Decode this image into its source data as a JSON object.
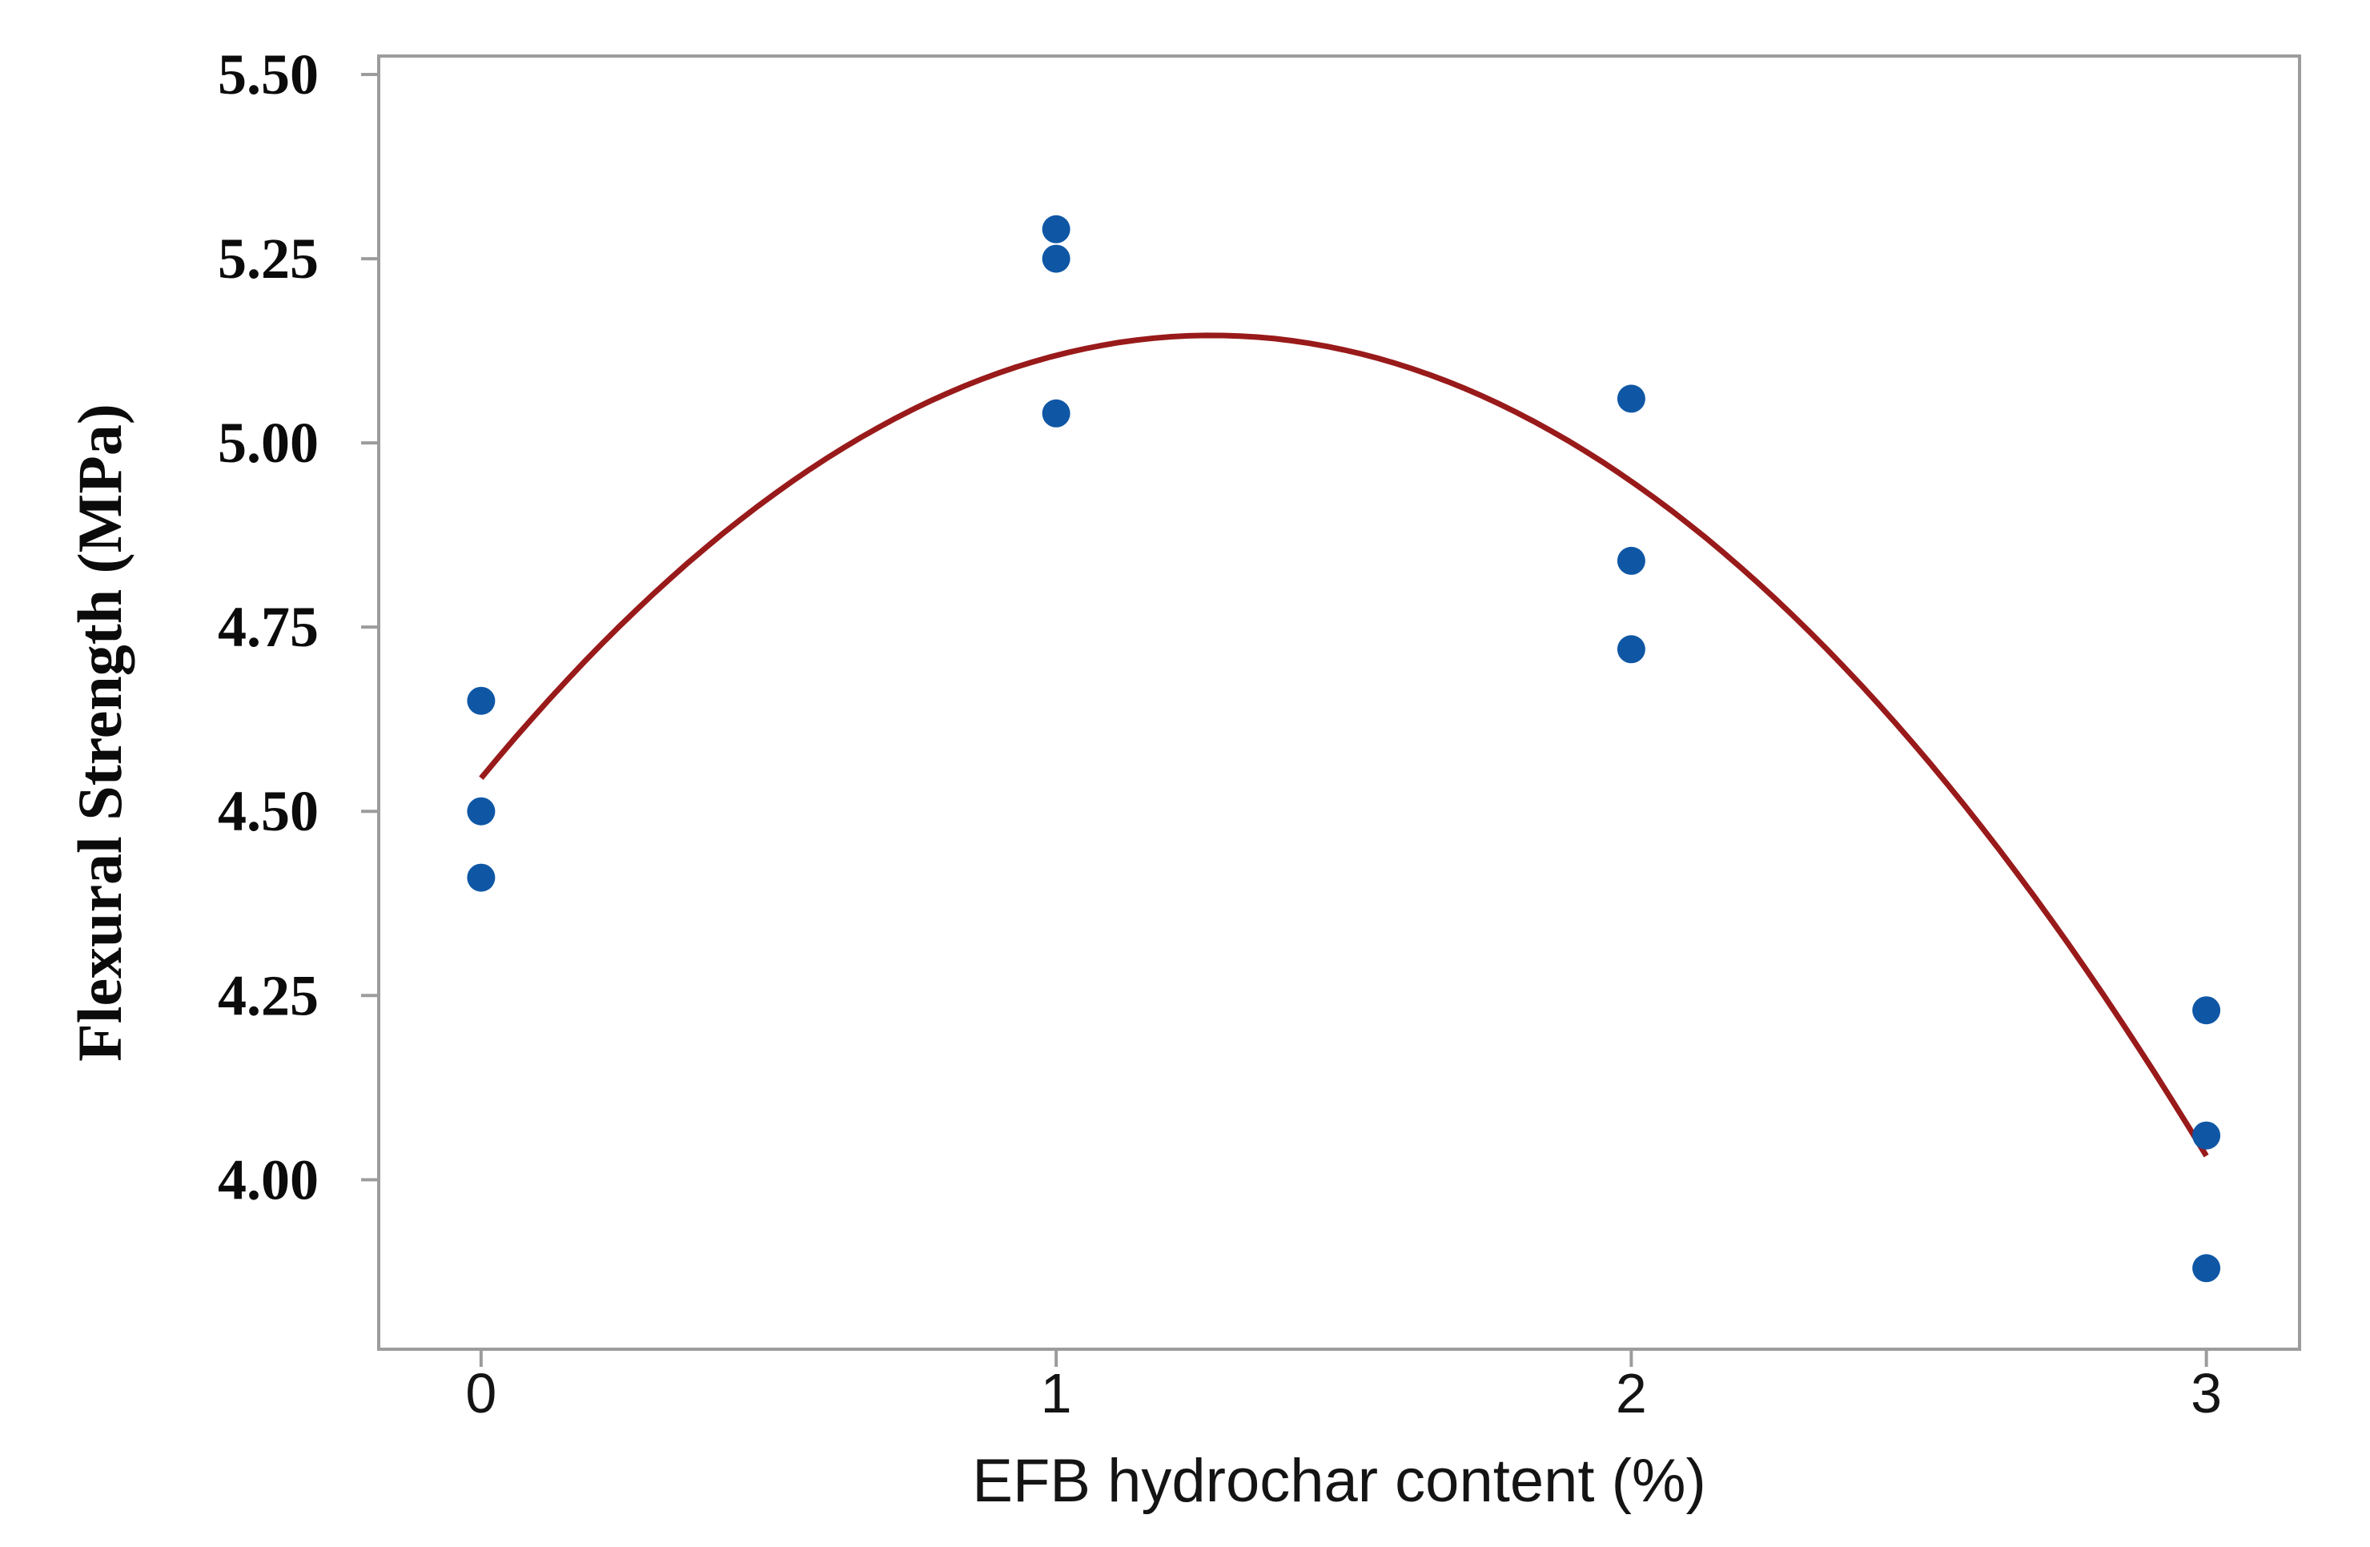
{
  "chart_data": {
    "type": "scatter",
    "title": "",
    "xlabel": "EFB hydrochar content (%)",
    "ylabel": "Flexural Strength (MPa)",
    "x_tick_labels": [
      "0",
      "1",
      "2",
      "3"
    ],
    "x_tick_values": [
      0,
      1,
      2,
      3
    ],
    "y_tick_labels": [
      "5.50",
      "5.25",
      "5.00",
      "4.75",
      "4.50",
      "4.25",
      "4.00"
    ],
    "y_tick_values": [
      5.5,
      5.25,
      5.0,
      4.75,
      4.5,
      4.25,
      4.0
    ],
    "xlim": [
      -0.178,
      3.162
    ],
    "ylim": [
      3.77,
      5.525
    ],
    "grid": false,
    "legend": false,
    "axis_color": "#9C9C9C",
    "tick_color": "#9C9C9C",
    "text_color": "#0b0b0b",
    "series": [
      {
        "name": "flexural-strength-observations",
        "type": "scatter",
        "marker": "circle",
        "color": "#0F57A5",
        "points": [
          {
            "x": 0,
            "y": 4.65
          },
          {
            "x": 0,
            "y": 4.5
          },
          {
            "x": 0,
            "y": 4.41
          },
          {
            "x": 1,
            "y": 5.29
          },
          {
            "x": 1,
            "y": 5.25
          },
          {
            "x": 1,
            "y": 5.04
          },
          {
            "x": 2,
            "y": 5.06
          },
          {
            "x": 2,
            "y": 4.84
          },
          {
            "x": 2,
            "y": 4.72
          },
          {
            "x": 3,
            "y": 4.23
          },
          {
            "x": 3,
            "y": 4.06
          },
          {
            "x": 3,
            "y": 3.88
          }
        ]
      },
      {
        "name": "quadratic-fit-line",
        "type": "line",
        "color": "#991A1A",
        "poly_coefficients": {
          "intercept": 4.545,
          "x": 0.946,
          "x2": -0.3723
        },
        "x_domain": [
          0,
          3
        ]
      }
    ]
  }
}
